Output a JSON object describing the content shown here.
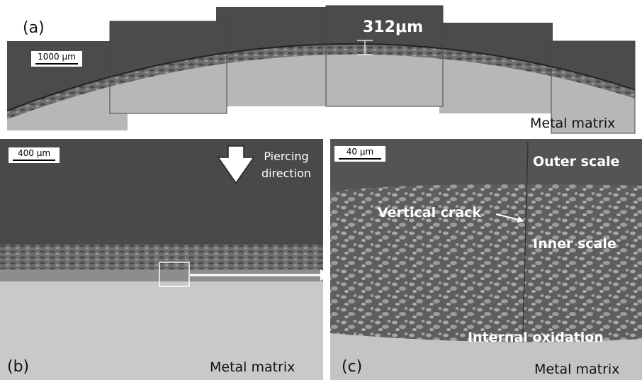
{
  "panel_a": {
    "label": "(a)",
    "thickness": "312μm",
    "scale_bar": "1000 μm",
    "region": "Metal matrix"
  },
  "panel_b": {
    "label": "(b)",
    "scale_bar": "400 μm",
    "direction": [
      "Piercing",
      "direction"
    ],
    "region": "Metal matrix"
  },
  "panel_c": {
    "label": "(c)",
    "scale_bar": "40 μm",
    "outer": "Outer  scale",
    "crack": "Vertical crack",
    "inner": "Inner  scale",
    "internal": "Internal  oxidation",
    "region": "Metal matrix"
  }
}
